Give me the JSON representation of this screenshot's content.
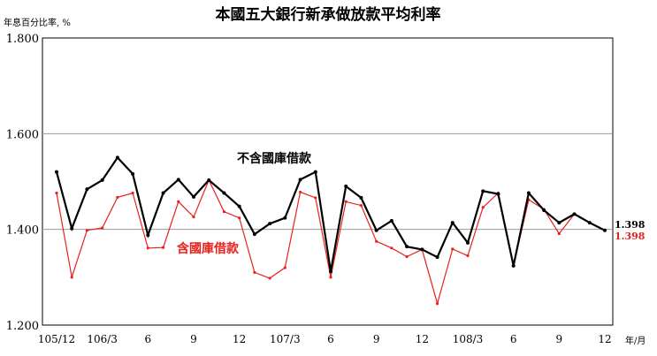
{
  "chart_data": {
    "type": "line",
    "title": "本國五大銀行新承做放款平均利率",
    "ylabel": "年息百分比率, %",
    "xlabel": "年/月",
    "ylim": [
      1.2,
      1.8
    ],
    "y_ticks": [
      "1.800",
      "1.600",
      "1.400",
      "1.200"
    ],
    "x_tick_labels": [
      {
        "index": 0,
        "label": "105/12"
      },
      {
        "index": 3,
        "label": "106/3"
      },
      {
        "index": 6,
        "label": "6"
      },
      {
        "index": 9,
        "label": "9"
      },
      {
        "index": 12,
        "label": "12"
      },
      {
        "index": 15,
        "label": "107/3"
      },
      {
        "index": 18,
        "label": "6"
      },
      {
        "index": 21,
        "label": "9"
      },
      {
        "index": 24,
        "label": "12"
      },
      {
        "index": 27,
        "label": "108/3"
      },
      {
        "index": 30,
        "label": "6"
      },
      {
        "index": 33,
        "label": "9"
      },
      {
        "index": 36,
        "label": "12"
      }
    ],
    "gridlines": true,
    "series": [
      {
        "name": "不含國庫借款",
        "color": "#000000",
        "end_label": "1.398",
        "values": [
          1.52,
          1.402,
          1.484,
          1.503,
          1.55,
          1.516,
          1.388,
          1.476,
          1.504,
          1.468,
          1.503,
          1.476,
          1.448,
          1.39,
          1.412,
          1.424,
          1.504,
          1.52,
          1.312,
          1.49,
          1.466,
          1.398,
          1.418,
          1.364,
          1.358,
          1.342,
          1.414,
          1.372,
          1.48,
          1.474,
          1.324,
          1.476,
          1.44,
          1.414,
          1.432,
          1.414,
          1.398
        ]
      },
      {
        "name": "含國庫借款",
        "color": "#e8211d",
        "end_label": "1.398",
        "values": [
          1.476,
          1.3,
          1.398,
          1.403,
          1.467,
          1.476,
          1.361,
          1.362,
          1.458,
          1.426,
          1.503,
          1.437,
          1.424,
          1.31,
          1.298,
          1.32,
          1.478,
          1.466,
          1.3,
          1.458,
          1.45,
          1.375,
          1.361,
          1.343,
          1.358,
          1.245,
          1.359,
          1.345,
          1.446,
          1.476,
          1.324,
          1.462,
          1.442,
          1.391,
          1.432,
          1.414,
          1.398
        ]
      }
    ]
  }
}
